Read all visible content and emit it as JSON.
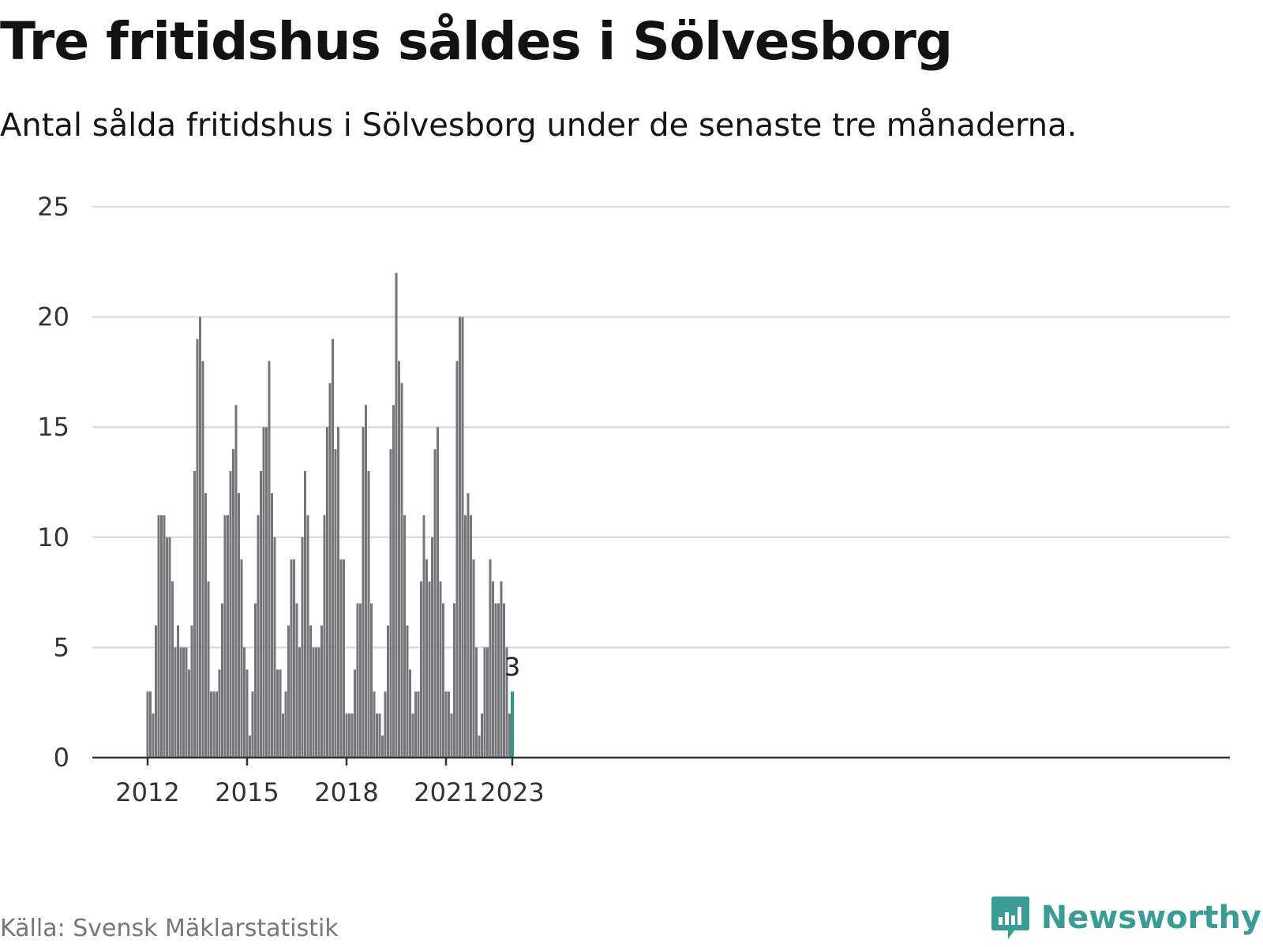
{
  "title": "Tre fritidshus såldes i Sölvesborg",
  "subtitle": "Antal sålda fritidshus i Sölvesborg under de senaste tre månaderna.",
  "source": "Källa: Svensk Mäklarstatistik",
  "brand": {
    "name": "Newsworthy",
    "icon": "newsworthy-chat-chart-icon",
    "color": "#3a9d95"
  },
  "chart_data": {
    "type": "bar",
    "start": "2012-01",
    "end": "2023-01",
    "values": [
      3,
      3,
      2,
      6,
      11,
      11,
      11,
      10,
      10,
      8,
      5,
      6,
      5,
      5,
      5,
      4,
      6,
      13,
      19,
      20,
      18,
      12,
      8,
      3,
      3,
      3,
      4,
      7,
      11,
      11,
      13,
      14,
      16,
      12,
      9,
      5,
      4,
      1,
      3,
      7,
      11,
      13,
      15,
      15,
      18,
      12,
      10,
      4,
      4,
      2,
      3,
      6,
      9,
      9,
      7,
      5,
      10,
      13,
      11,
      6,
      5,
      5,
      5,
      6,
      11,
      15,
      17,
      19,
      14,
      15,
      9,
      9,
      2,
      2,
      2,
      4,
      7,
      7,
      15,
      16,
      13,
      7,
      3,
      2,
      2,
      1,
      3,
      6,
      14,
      16,
      22,
      18,
      17,
      11,
      6,
      4,
      2,
      3,
      3,
      8,
      11,
      9,
      8,
      10,
      14,
      15,
      8,
      7,
      3,
      3,
      2,
      7,
      18,
      20,
      20,
      11,
      12,
      11,
      9,
      5,
      1,
      2,
      5,
      5,
      9,
      8,
      7,
      7,
      8,
      7,
      5,
      2,
      3
    ],
    "highlight_last": true,
    "highlight_label": "3",
    "x_ticks": [
      "2012",
      "2015",
      "2018",
      "2021",
      "2023"
    ],
    "y_ticks": [
      "0",
      "5",
      "10",
      "15",
      "20",
      "25"
    ],
    "ylim": [
      0,
      25
    ],
    "grid": true,
    "colors": {
      "bar": "#76767a",
      "highlight": "#2a9d8f",
      "grid": "#dddddd",
      "axis": "#333333"
    }
  }
}
